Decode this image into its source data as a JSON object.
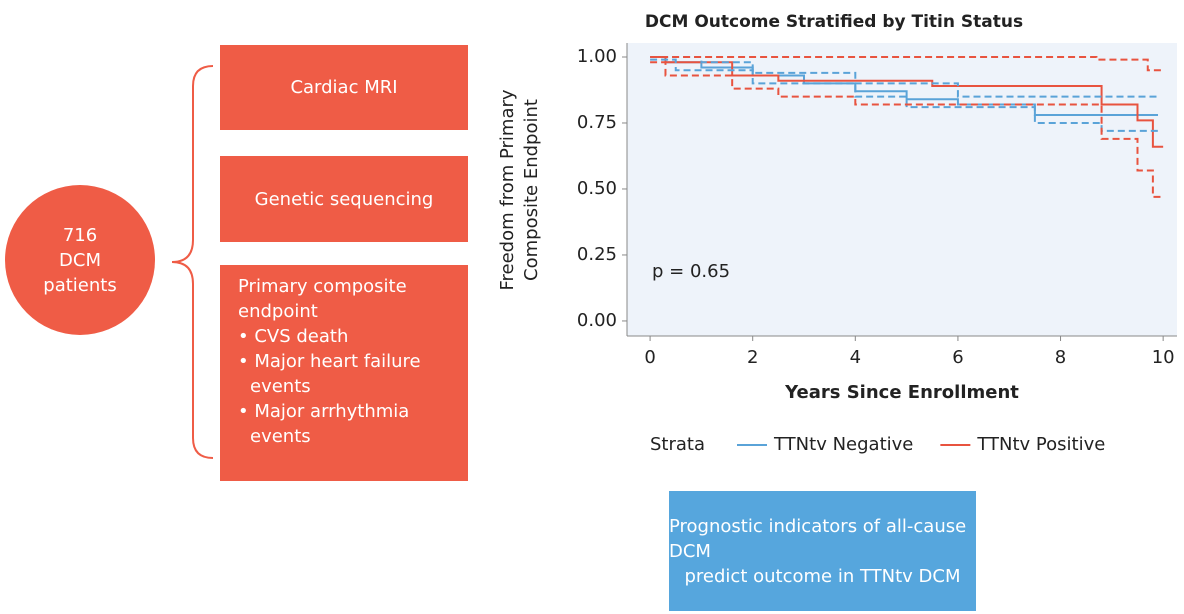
{
  "diagram": {
    "circle": {
      "lines": [
        "716",
        "DCM",
        "patients"
      ]
    },
    "boxes": [
      {
        "text": "Cardiac MRI"
      },
      {
        "text": "Genetic sequencing"
      },
      {
        "title": "Primary composite endpoint",
        "bullets": [
          "• CVS death",
          "• Major heart failure events",
          "• Major arrhythmia events"
        ]
      }
    ],
    "conclusion": [
      "Prognostic indicators of all-cause DCM",
      "predict outcome in TTNtv DCM"
    ]
  },
  "chart_data": {
    "type": "line",
    "step": true,
    "title": "DCM Outcome Stratified by Titin Status",
    "x_label": "Years Since Enrollment",
    "y_label": [
      "Freedom from Primary",
      "Composite Endpoint"
    ],
    "annotation": "p = 0.65",
    "legend_title": "Strata",
    "xlim": [
      -0.45,
      10.27
    ],
    "ylim": [
      -0.057,
      1.053
    ],
    "xticks": [
      0,
      2,
      4,
      6,
      8,
      10
    ],
    "yticks": [
      {
        "value": 0,
        "label": "0.00"
      },
      {
        "value": 0.25,
        "label": "0.25"
      },
      {
        "value": 0.5,
        "label": "0.50"
      },
      {
        "value": 0.75,
        "label": "0.75"
      },
      {
        "value": 1,
        "label": "1.00"
      }
    ],
    "series": [
      {
        "name": "TTNtv Negative",
        "color": "#5aa3d8",
        "dashed": false,
        "x": [
          0,
          0.3,
          0.3,
          1,
          1,
          2,
          2,
          3,
          3,
          4,
          4,
          5,
          5,
          6,
          6,
          7.5,
          7.5,
          9.9
        ],
        "values": [
          1,
          1,
          0.98,
          0.98,
          0.96,
          0.96,
          0.93,
          0.93,
          0.9,
          0.9,
          0.87,
          0.87,
          0.84,
          0.84,
          0.82,
          0.82,
          0.78,
          0.78
        ]
      },
      {
        "name": "TTNtv Positive",
        "color": "#e8533f",
        "dashed": false,
        "x": [
          0,
          0.3,
          0.3,
          1.6,
          1.6,
          2.5,
          2.5,
          5.5,
          5.5,
          8.8,
          8.8,
          9.5,
          9.5,
          9.8,
          9.8,
          10
        ],
        "values": [
          1,
          1,
          0.98,
          0.98,
          0.93,
          0.93,
          0.91,
          0.91,
          0.89,
          0.89,
          0.82,
          0.82,
          0.76,
          0.76,
          0.66,
          0.66
        ]
      },
      {
        "color": "#5aa3d8",
        "dashed": true,
        "x": [
          0,
          1,
          1,
          2,
          2,
          4,
          4,
          6,
          6,
          9.9
        ],
        "values": [
          1,
          1,
          0.98,
          0.98,
          0.94,
          0.94,
          0.9,
          0.9,
          0.85,
          0.85
        ]
      },
      {
        "color": "#5aa3d8",
        "dashed": true,
        "x": [
          0,
          0.5,
          0.5,
          2,
          2,
          4,
          4,
          5,
          5,
          7.5,
          7.5,
          8.8,
          8.8,
          9.9
        ],
        "values": [
          0.99,
          0.99,
          0.95,
          0.95,
          0.9,
          0.9,
          0.85,
          0.85,
          0.81,
          0.81,
          0.75,
          0.75,
          0.72,
          0.72
        ]
      },
      {
        "color": "#e8533f",
        "dashed": true,
        "x": [
          0,
          8.7,
          8.7,
          9.7,
          9.7,
          10
        ],
        "values": [
          1,
          1,
          0.99,
          0.99,
          0.95,
          0.95
        ]
      },
      {
        "color": "#e8533f",
        "dashed": true,
        "x": [
          0,
          0.3,
          0.3,
          1.6,
          1.6,
          2.5,
          2.5,
          4,
          4,
          8.8,
          8.8,
          9.5,
          9.5,
          9.8,
          9.8,
          10
        ],
        "values": [
          0.98,
          0.98,
          0.93,
          0.93,
          0.88,
          0.88,
          0.85,
          0.85,
          0.82,
          0.82,
          0.69,
          0.69,
          0.57,
          0.57,
          0.47,
          0.47
        ]
      }
    ]
  }
}
